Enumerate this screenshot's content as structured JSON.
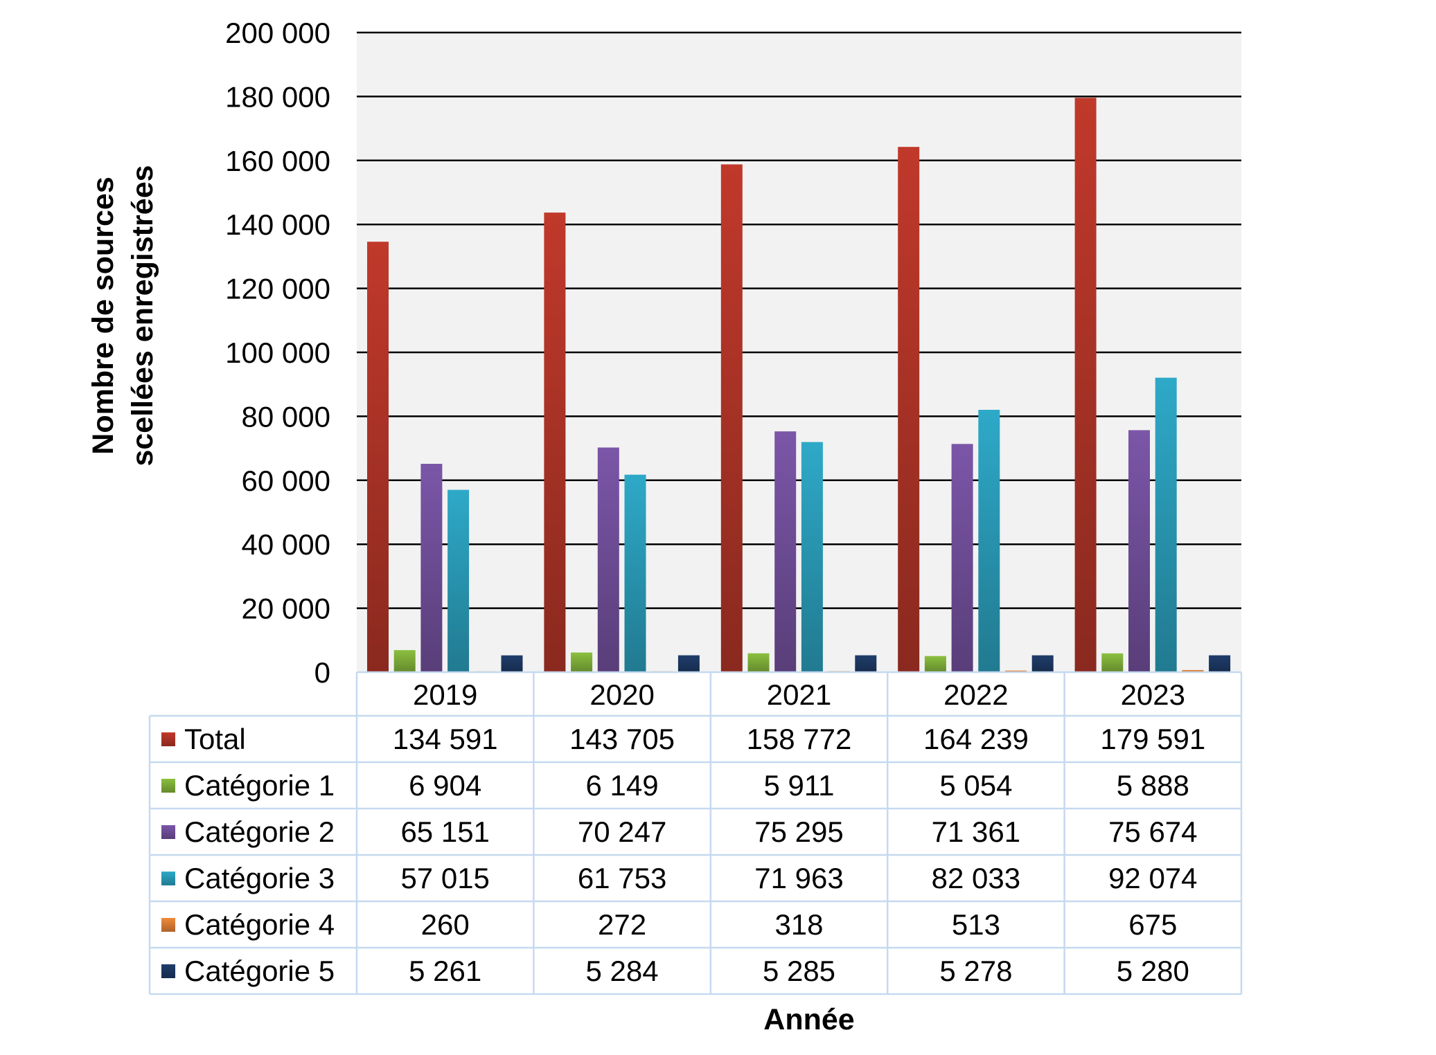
{
  "chart_data": {
    "type": "bar",
    "categories": [
      "2019",
      "2020",
      "2021",
      "2022",
      "2023"
    ],
    "series": [
      {
        "name": "Total",
        "values": [
          134591,
          143705,
          158772,
          164239,
          179591
        ],
        "labels": [
          "134 591",
          "143 705",
          "158 772",
          "164 239",
          "179 591"
        ],
        "color": "#c0392b"
      },
      {
        "name": "Catégorie 1",
        "values": [
          6904,
          6149,
          5911,
          5054,
          5888
        ],
        "labels": [
          "6 904",
          "6 149",
          "5 911",
          "5 054",
          "5 888"
        ],
        "color": "#8bbf3f"
      },
      {
        "name": "Catégorie 2",
        "values": [
          65151,
          70247,
          75295,
          71361,
          75674
        ],
        "labels": [
          "65 151",
          "70 247",
          "75 295",
          "71 361",
          "75 674"
        ],
        "color": "#7b56a8"
      },
      {
        "name": "Catégorie 3",
        "values": [
          57015,
          61753,
          71963,
          82033,
          92074
        ],
        "labels": [
          "57 015",
          "61 753",
          "71 963",
          "82 033",
          "92 074"
        ],
        "color": "#2ea9c8"
      },
      {
        "name": "Catégorie 4",
        "values": [
          260,
          272,
          318,
          513,
          675
        ],
        "labels": [
          "260",
          "272",
          "318",
          "513",
          "675"
        ],
        "color": "#f08a3a"
      },
      {
        "name": "Catégorie 5",
        "values": [
          5261,
          5284,
          5285,
          5278,
          5280
        ],
        "labels": [
          "5 261",
          "5 284",
          "5 285",
          "5 278",
          "5 280"
        ],
        "color": "#1f3d6b"
      }
    ],
    "ylabel": [
      "Nombre de sources",
      "scellées enregistrées"
    ],
    "xlabel": "Année",
    "ylim": [
      0,
      200000
    ],
    "yticks": [
      0,
      20000,
      40000,
      60000,
      80000,
      100000,
      120000,
      140000,
      160000,
      180000,
      200000
    ],
    "ytick_labels": [
      "0",
      "20 000",
      "40 000",
      "60 000",
      "80 000",
      "100 000",
      "120 000",
      "140 000",
      "160 000",
      "180 000",
      "200 000"
    ],
    "grid": true,
    "legend": "data-table-below"
  },
  "colors": {
    "plot_background": "#f2f2f2",
    "gridline": "#000000",
    "table_border": "#c6d9f0"
  }
}
